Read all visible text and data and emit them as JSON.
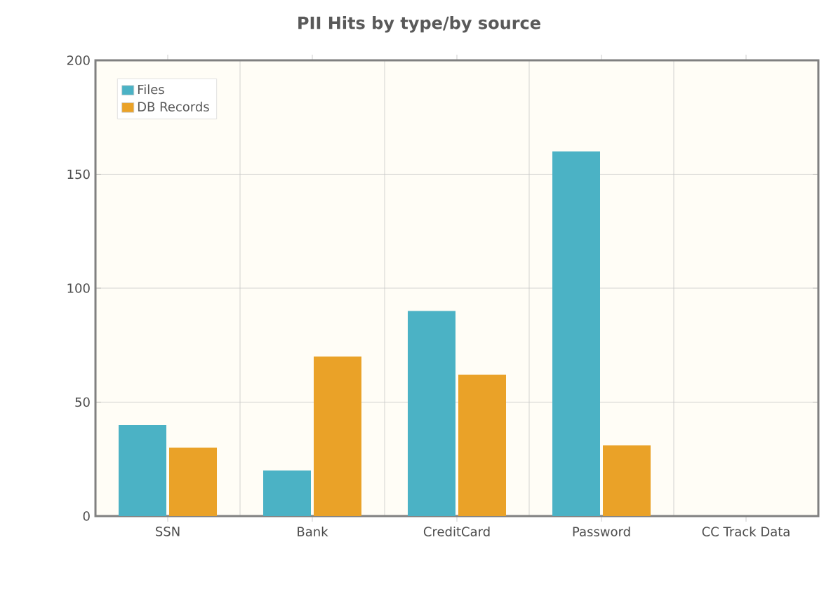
{
  "chart_data": {
    "type": "bar",
    "title": "PII Hits by type/by source",
    "categories": [
      "SSN",
      "Bank",
      "CreditCard",
      "Password",
      "CC Track Data"
    ],
    "series": [
      {
        "name": "Files",
        "color": "#4bb2c5",
        "values": [
          40,
          20,
          90,
          160,
          0
        ]
      },
      {
        "name": "DB Records",
        "color": "#eaa228",
        "values": [
          30,
          70,
          62,
          31,
          0
        ]
      }
    ],
    "ylim": [
      0,
      200
    ],
    "yticks": [
      0,
      50,
      100,
      150,
      200
    ],
    "grid": true,
    "legend": "top left"
  }
}
